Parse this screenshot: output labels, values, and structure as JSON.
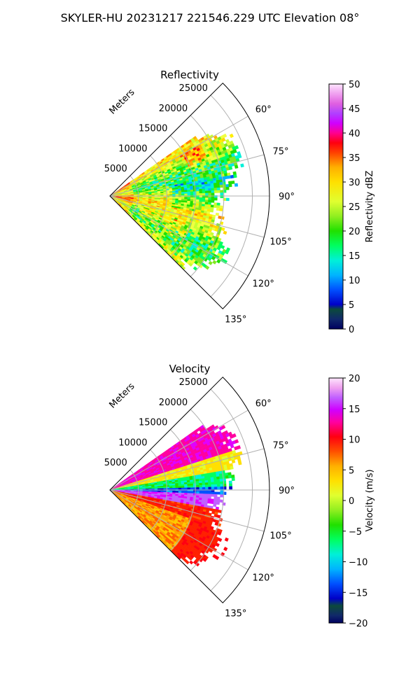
{
  "figure_title": "SKYLER-HU  20231217  221546.229 UTC Elevation 08°",
  "chart_data": [
    {
      "type": "heatmap",
      "projection": "polar-sector",
      "title": "Reflectivity",
      "radial_label": "Meters",
      "radial_ticks": [
        "5000",
        "10000",
        "15000",
        "20000",
        "25000"
      ],
      "radial_tick_values": [
        5000,
        10000,
        15000,
        20000,
        25000
      ],
      "radial_max": 28000,
      "angle_ticks": [
        "60°",
        "75°",
        "90°",
        "105°",
        "120°",
        "135°"
      ],
      "angle_tick_values": [
        60,
        75,
        90,
        105,
        120,
        135
      ],
      "angle_range": [
        45,
        135
      ],
      "data_angle_range": [
        55,
        135
      ],
      "grid": true,
      "colorbar": {
        "label": "Reflectivity dBZ",
        "range": [
          0,
          50
        ],
        "ticks": [
          "0",
          "5",
          "10",
          "15",
          "20",
          "25",
          "30",
          "35",
          "40",
          "45",
          "50"
        ],
        "tick_values": [
          0,
          5,
          10,
          15,
          20,
          25,
          30,
          35,
          40,
          45,
          50
        ]
      },
      "field_summary": [
        {
          "angle_range": [
            55,
            75
          ],
          "range_m": [
            0,
            22000
          ],
          "dbz_range": [
            25,
            38
          ]
        },
        {
          "angle_range": [
            75,
            100
          ],
          "range_m": [
            0,
            24000
          ],
          "dbz_range": [
            18,
            30
          ]
        },
        {
          "angle_range": [
            100,
            135
          ],
          "range_m": [
            0,
            23000
          ],
          "dbz_range": [
            22,
            40
          ]
        }
      ]
    },
    {
      "type": "heatmap",
      "projection": "polar-sector",
      "title": "Velocity",
      "radial_label": "Meters",
      "radial_ticks": [
        "5000",
        "10000",
        "15000",
        "20000",
        "25000"
      ],
      "radial_tick_values": [
        5000,
        10000,
        15000,
        20000,
        25000
      ],
      "radial_max": 28000,
      "angle_ticks": [
        "60°",
        "75°",
        "90°",
        "105°",
        "120°",
        "135°"
      ],
      "angle_tick_values": [
        60,
        75,
        90,
        105,
        120,
        135
      ],
      "angle_range": [
        45,
        135
      ],
      "data_angle_range": [
        55,
        135
      ],
      "grid": true,
      "colorbar": {
        "label": "Velocity (m/s)",
        "range": [
          -20,
          20
        ],
        "ticks": [
          "−20",
          "−15",
          "−10",
          "−5",
          "0",
          "5",
          "10",
          "15",
          "20"
        ],
        "tick_values": [
          -20,
          -15,
          -10,
          -5,
          0,
          5,
          10,
          15,
          20
        ]
      },
      "field_summary": [
        {
          "angle_range": [
            55,
            72
          ],
          "range_m": [
            0,
            22000
          ],
          "velocity_range": [
            10,
            16
          ]
        },
        {
          "angle_range": [
            72,
            80
          ],
          "range_m": [
            0,
            23000
          ],
          "velocity_range": [
            -2,
            2
          ]
        },
        {
          "angle_range": [
            80,
            88
          ],
          "range_m": [
            0,
            24000
          ],
          "velocity_range": [
            -12,
            -5
          ]
        },
        {
          "angle_range": [
            88,
            93
          ],
          "range_m": [
            0,
            24000
          ],
          "velocity_range": [
            -16,
            -12
          ]
        },
        {
          "angle_range": [
            93,
            100
          ],
          "range_m": [
            0,
            24000
          ],
          "velocity_range": [
            13,
            16
          ]
        },
        {
          "angle_range": [
            100,
            135
          ],
          "range_m": [
            0,
            22000
          ],
          "velocity_range": [
            2,
            10
          ]
        }
      ]
    }
  ]
}
